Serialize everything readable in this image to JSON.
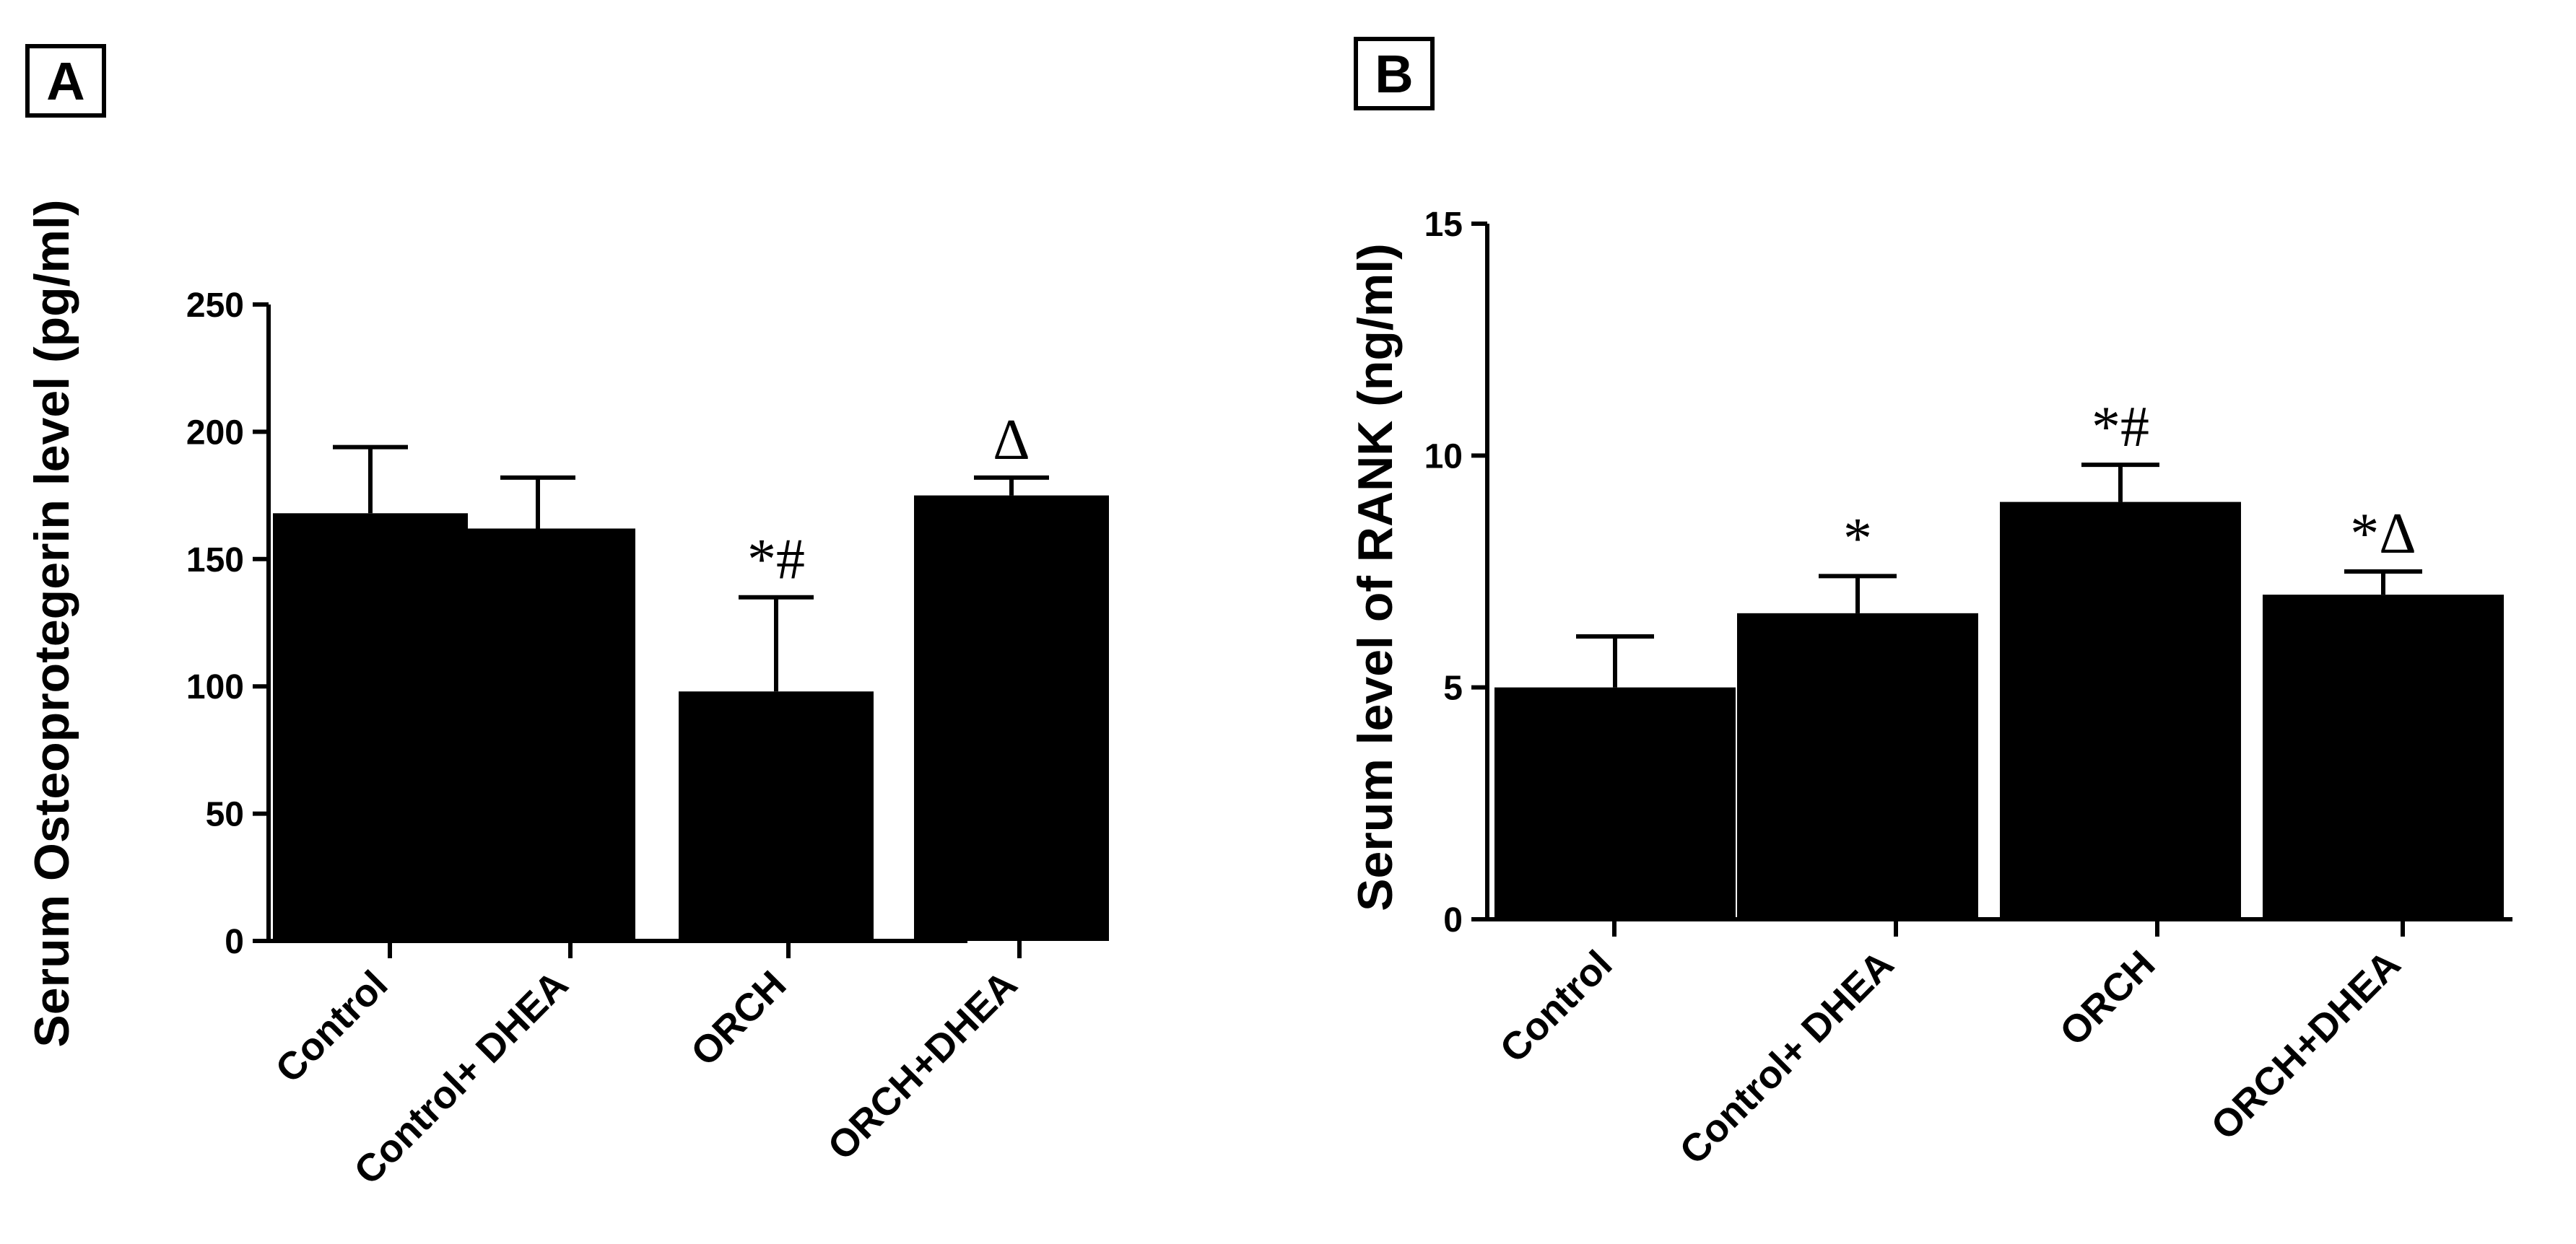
{
  "chart_data": [
    {
      "type": "bar",
      "panel_label": "A",
      "title": "",
      "xlabel": "",
      "ylabel": "Serum Osteoprotegerin level (pg/ml)",
      "ylim": [
        0,
        250
      ],
      "yticks": [
        0,
        50,
        100,
        150,
        200,
        250
      ],
      "grid": false,
      "categories": [
        "Control",
        "Control+ DHEA",
        "ORCH",
        "ORCH+DHEA"
      ],
      "values": [
        168,
        162,
        98,
        175
      ],
      "errors": [
        26,
        20,
        37,
        7
      ],
      "annotations": [
        "",
        "",
        "*#",
        "Δ"
      ]
    },
    {
      "type": "bar",
      "panel_label": "B",
      "title": "",
      "xlabel": "",
      "ylabel": "Serum level of RANK (ng/ml)",
      "ylim": [
        0,
        15
      ],
      "yticks": [
        0,
        5,
        10,
        15
      ],
      "grid": false,
      "categories": [
        "Control",
        "Control+ DHEA",
        "ORCH",
        "ORCH+DHEA"
      ],
      "values": [
        5.0,
        6.6,
        9.0,
        7.0
      ],
      "errors": [
        1.1,
        0.8,
        0.8,
        0.5
      ],
      "annotations": [
        "",
        "*",
        "*#",
        "*Δ"
      ]
    }
  ]
}
